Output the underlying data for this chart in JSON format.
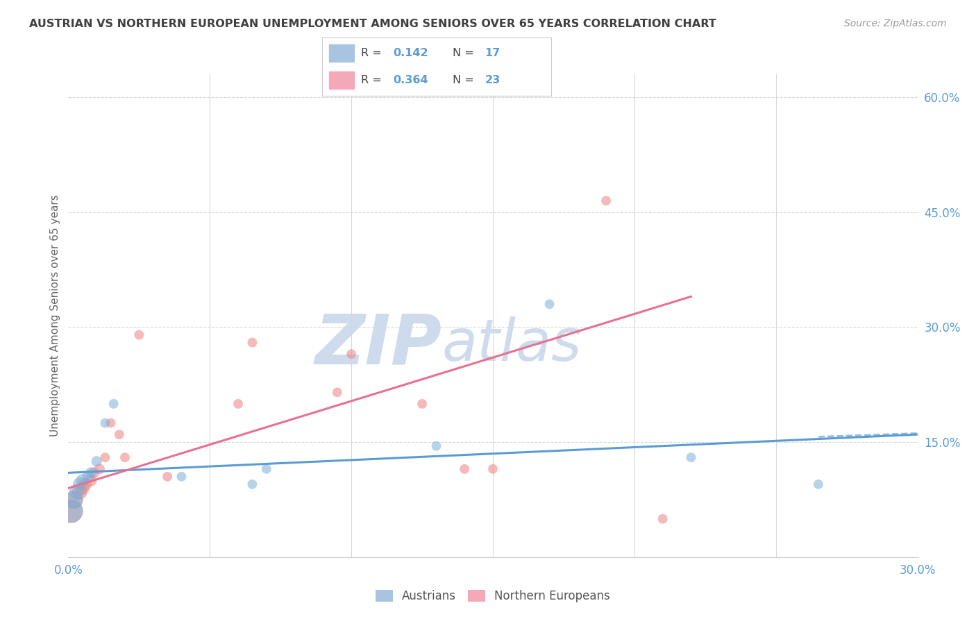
{
  "title": "AUSTRIAN VS NORTHERN EUROPEAN UNEMPLOYMENT AMONG SENIORS OVER 65 YEARS CORRELATION CHART",
  "source": "Source: ZipAtlas.com",
  "ylabel": "Unemployment Among Seniors over 65 years",
  "xlim": [
    0.0,
    0.3
  ],
  "ylim": [
    0.0,
    0.63
  ],
  "xticks": [
    0.0,
    0.05,
    0.1,
    0.15,
    0.2,
    0.25,
    0.3
  ],
  "xtick_labels": [
    "0.0%",
    "",
    "",
    "",
    "",
    "",
    "30.0%"
  ],
  "yticks_right": [
    0.0,
    0.15,
    0.3,
    0.45,
    0.6
  ],
  "ytick_labels_right": [
    "",
    "15.0%",
    "30.0%",
    "45.0%",
    "60.0%"
  ],
  "austrians": {
    "color": "#7ab0d8",
    "x": [
      0.001,
      0.002,
      0.003,
      0.004,
      0.005,
      0.007,
      0.008,
      0.01,
      0.013,
      0.016,
      0.04,
      0.065,
      0.07,
      0.13,
      0.17,
      0.22,
      0.265
    ],
    "y": [
      0.06,
      0.075,
      0.085,
      0.095,
      0.1,
      0.105,
      0.11,
      0.125,
      0.175,
      0.2,
      0.105,
      0.095,
      0.115,
      0.145,
      0.33,
      0.13,
      0.095
    ],
    "sizes": [
      600,
      350,
      250,
      200,
      180,
      150,
      130,
      120,
      100,
      100,
      100,
      100,
      100,
      100,
      100,
      100,
      100
    ]
  },
  "northern_europeans": {
    "color": "#f08080",
    "x": [
      0.001,
      0.002,
      0.004,
      0.005,
      0.006,
      0.008,
      0.009,
      0.011,
      0.013,
      0.015,
      0.018,
      0.02,
      0.025,
      0.035,
      0.06,
      0.065,
      0.095,
      0.1,
      0.125,
      0.14,
      0.15,
      0.19,
      0.21
    ],
    "y": [
      0.06,
      0.075,
      0.085,
      0.09,
      0.095,
      0.1,
      0.11,
      0.115,
      0.13,
      0.175,
      0.16,
      0.13,
      0.29,
      0.105,
      0.2,
      0.28,
      0.215,
      0.265,
      0.2,
      0.115,
      0.115,
      0.465,
      0.05
    ],
    "sizes": [
      600,
      350,
      250,
      200,
      180,
      150,
      130,
      120,
      100,
      100,
      100,
      100,
      100,
      100,
      100,
      100,
      100,
      100,
      100,
      100,
      100,
      100,
      100
    ]
  },
  "blue_line": {
    "x": [
      0.0,
      0.3
    ],
    "y": [
      0.11,
      0.16
    ]
  },
  "pink_line": {
    "x": [
      0.0,
      0.22
    ],
    "y": [
      0.09,
      0.34
    ]
  },
  "blue_dashed": {
    "x": [
      0.265,
      0.31
    ],
    "y": [
      0.157,
      0.163
    ]
  },
  "background_color": "#ffffff",
  "grid_color": "#d8d8d8",
  "title_color": "#404040",
  "axis_label_color": "#666666",
  "right_axis_color": "#5b9bd5",
  "watermark_zip": "ZIP",
  "watermark_atlas": "atlas",
  "watermark_color": "#c8d8ea"
}
